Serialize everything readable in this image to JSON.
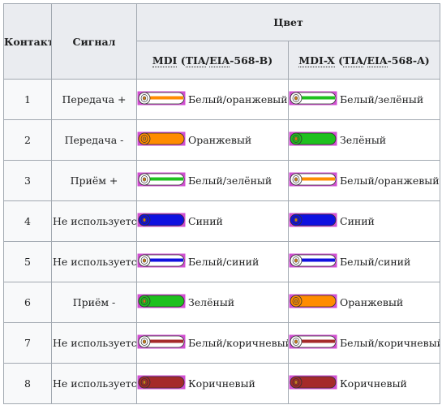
{
  "headers": {
    "contact": "Контакт",
    "signal": "Сигнал",
    "color": "Цвет",
    "mdi": {
      "name": "MDI",
      "open": "(",
      "tia": "TIA",
      "slash": "/",
      "eia": "EIA",
      "suffix": "-568-B)"
    },
    "mdix": {
      "name": "MDI-X",
      "open": "(",
      "tia": "TIA",
      "slash": "/",
      "eia": "EIA",
      "suffix": "-568-A)"
    }
  },
  "colors": {
    "orange": "#ff8c00",
    "green": "#1fc01f",
    "blue": "#1010e0",
    "brown": "#a52a2a",
    "white": "#ffffff",
    "frame": "#d24fd2"
  },
  "rows": [
    {
      "pin": "1",
      "signal": "Передача +",
      "align": "center",
      "mdi": {
        "label": "Белый/оранжевый",
        "color": "orange",
        "striped": true
      },
      "mdix": {
        "label": "Белый/зелёный",
        "color": "green",
        "striped": true
      }
    },
    {
      "pin": "2",
      "signal": "Передача -",
      "align": "center",
      "mdi": {
        "label": "Оранжевый",
        "color": "orange",
        "striped": false
      },
      "mdix": {
        "label": "Зелёный",
        "color": "green",
        "striped": false
      }
    },
    {
      "pin": "3",
      "signal": "Приём +",
      "align": "center",
      "mdi": {
        "label": "Белый/зелёный",
        "color": "green",
        "striped": true
      },
      "mdix": {
        "label": "Белый/оранжевый",
        "color": "orange",
        "striped": true
      }
    },
    {
      "pin": "4",
      "signal": "Не используется",
      "align": "left",
      "mdi": {
        "label": "Синий",
        "color": "blue",
        "striped": false
      },
      "mdix": {
        "label": "Синий",
        "color": "blue",
        "striped": false
      }
    },
    {
      "pin": "5",
      "signal": "Не используется",
      "align": "left",
      "mdi": {
        "label": "Белый/синий",
        "color": "blue",
        "striped": true
      },
      "mdix": {
        "label": "Белый/синий",
        "color": "blue",
        "striped": true
      }
    },
    {
      "pin": "6",
      "signal": "Приём -",
      "align": "center",
      "mdi": {
        "label": "Зелёный",
        "color": "green",
        "striped": false
      },
      "mdix": {
        "label": "Оранжевый",
        "color": "orange",
        "striped": false
      }
    },
    {
      "pin": "7",
      "signal": "Не используется",
      "align": "left",
      "mdi": {
        "label": "Белый/коричневый",
        "color": "brown",
        "striped": true
      },
      "mdix": {
        "label": "Белый/коричневый",
        "color": "brown",
        "striped": true
      }
    },
    {
      "pin": "8",
      "signal": "Не используется",
      "align": "left",
      "mdi": {
        "label": "Коричневый",
        "color": "brown",
        "striped": false
      },
      "mdix": {
        "label": "Коричневый",
        "color": "brown",
        "striped": false
      }
    }
  ]
}
